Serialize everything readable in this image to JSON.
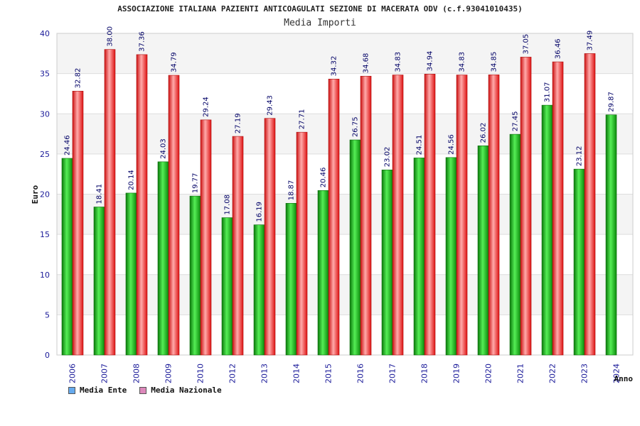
{
  "chart_data": {
    "type": "bar",
    "title": "ASSOCIAZIONE ITALIANA PAZIENTI ANTICOAGULATI SEZIONE DI MACERATA ODV (c.f.93041010435)",
    "subtitle": "Media Importi",
    "ylabel": "Euro",
    "xlabel": "Anno",
    "ylim": [
      0,
      40
    ],
    "yticks": [
      "0",
      "5",
      "10",
      "15",
      "20",
      "25",
      "30",
      "35",
      "40"
    ],
    "grid": true,
    "legend_position": "bottom-left",
    "categories": [
      "2006",
      "2007",
      "2008",
      "2009",
      "2010",
      "2012",
      "2013",
      "2014",
      "2015",
      "2016",
      "2017",
      "2018",
      "2019",
      "2020",
      "2021",
      "2022",
      "2023",
      "2024"
    ],
    "series": [
      {
        "name": "Media Ente",
        "color": "#22aa22",
        "legend_color": "#66aaee",
        "values": [
          24.46,
          18.41,
          20.14,
          24.03,
          19.77,
          17.08,
          16.19,
          18.87,
          20.46,
          26.75,
          23.02,
          24.51,
          24.56,
          26.02,
          27.45,
          31.07,
          23.12,
          29.87
        ],
        "labels": [
          "24.46",
          "18.41",
          "20.14",
          "24.03",
          "19.77",
          "17.08",
          "16.19",
          "18.87",
          "20.46",
          "26.75",
          "23.02",
          "24.51",
          "24.56",
          "26.02",
          "27.45",
          "31.07",
          "23.12",
          "29.87"
        ]
      },
      {
        "name": "Media Nazionale",
        "color": "#ee2222",
        "legend_color": "#dd88bb",
        "values": [
          32.82,
          38.0,
          37.36,
          34.79,
          29.24,
          27.19,
          29.43,
          27.71,
          34.32,
          34.68,
          34.83,
          34.94,
          34.83,
          34.85,
          37.05,
          36.46,
          37.49,
          null
        ],
        "labels": [
          "32.82",
          "38.00",
          "37.36",
          "34.79",
          "29.24",
          "27.19",
          "29.43",
          "27.71",
          "34.32",
          "34.68",
          "34.83",
          "34.94",
          "34.83",
          "34.85",
          "37.05",
          "36.46",
          "37.49",
          ""
        ]
      }
    ]
  }
}
